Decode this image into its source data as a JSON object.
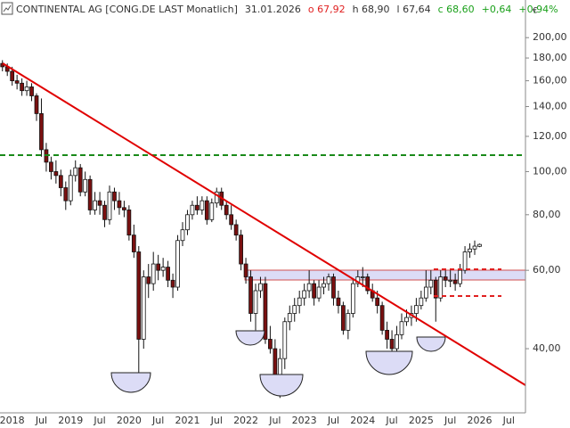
{
  "chart_data": {
    "type": "candlestick",
    "title": "CONTINENTAL AG [CONG.DE LAST Monatlich]",
    "date": "31.01.2026",
    "header_items": [
      {
        "text": "o 67,92",
        "color": "#e02020"
      },
      {
        "text": "h 68,90",
        "color": "#333333"
      },
      {
        "text": "l 67,64",
        "color": "#333333"
      },
      {
        "text": "c 68,60",
        "color": "#1aa01a"
      },
      {
        "text": "+0,64",
        "color": "#1aa01a"
      },
      {
        "text": "+0,94%",
        "color": "#1aa01a"
      }
    ],
    "currency_label": "€",
    "log_scale": true,
    "up_color": "#ffffff",
    "down_color": "#7a1010",
    "categories": [
      null,
      null,
      "2018",
      null,
      null,
      null,
      null,
      null,
      "Jul",
      null,
      null,
      null,
      null,
      null,
      "2019",
      null,
      null,
      null,
      null,
      null,
      "Jul",
      null,
      null,
      null,
      null,
      null,
      "2020",
      null,
      null,
      null,
      null,
      null,
      "Jul",
      null,
      null,
      null,
      null,
      null,
      "2021",
      null,
      null,
      null,
      null,
      null,
      "Jul",
      null,
      null,
      null,
      null,
      null,
      "2022",
      null,
      null,
      null,
      null,
      null,
      "Jul",
      null,
      null,
      null,
      null,
      null,
      "2023",
      null,
      null,
      null,
      null,
      null,
      "Jul",
      null,
      null,
      null,
      null,
      null,
      "2024",
      null,
      null,
      null,
      null,
      null,
      "Jul",
      null,
      null,
      null,
      null,
      null,
      "2025",
      null,
      null,
      null,
      null,
      null,
      "Jul",
      null,
      null,
      null,
      null,
      null,
      "2026",
      null,
      null,
      null,
      null,
      null,
      "Jul"
    ],
    "open": [
      175,
      172,
      168,
      160,
      158,
      152,
      155,
      148,
      135,
      112,
      105,
      100,
      98,
      92,
      86,
      98,
      102,
      90,
      96,
      82,
      86,
      84,
      78,
      90,
      86,
      83,
      82,
      72,
      66,
      42,
      58,
      56,
      62,
      60,
      61,
      57,
      55,
      70,
      74,
      80,
      84,
      82,
      86,
      78,
      85,
      90,
      84,
      80,
      76,
      72,
      62,
      58,
      48,
      54,
      56,
      42,
      40,
      34,
      38,
      46,
      48,
      50,
      52,
      54,
      56,
      52,
      55,
      56,
      58,
      52,
      50,
      44,
      48,
      56,
      58,
      58,
      54,
      52,
      50,
      44,
      42,
      40,
      43,
      46,
      47,
      48,
      50,
      52,
      55,
      57,
      52,
      58,
      57,
      57,
      56,
      60,
      66,
      67,
      67.92,
      null,
      null,
      null,
      null,
      null,
      null
    ],
    "high": [
      178,
      175,
      172,
      165,
      162,
      160,
      158,
      150,
      146,
      116,
      108,
      106,
      101,
      95,
      101,
      106,
      104,
      100,
      98,
      90,
      90,
      86,
      93,
      92,
      90,
      86,
      84,
      76,
      68,
      60,
      62,
      66,
      65,
      64,
      63,
      59,
      72,
      77,
      82,
      86,
      88,
      88,
      88,
      87,
      92,
      92,
      86,
      84,
      78,
      74,
      64,
      60,
      56,
      58,
      58,
      45,
      42,
      40,
      47,
      50,
      52,
      54,
      56,
      60,
      57,
      57,
      58,
      59,
      59,
      54,
      51,
      49,
      57,
      60,
      61,
      59,
      56,
      54,
      51,
      46,
      44,
      45,
      48,
      49,
      50,
      52,
      54,
      60,
      60,
      58,
      60,
      60,
      60,
      59,
      62,
      68,
      69,
      70,
      68.9,
      null,
      null,
      null,
      null,
      null,
      null
    ],
    "low": [
      168,
      164,
      156,
      153,
      148,
      148,
      144,
      130,
      108,
      100,
      96,
      94,
      88,
      82,
      84,
      95,
      88,
      88,
      80,
      80,
      80,
      75,
      76,
      82,
      80,
      79,
      70,
      64,
      34,
      40,
      52,
      54,
      57,
      58,
      55,
      52,
      54,
      68,
      72,
      78,
      80,
      80,
      76,
      77,
      83,
      82,
      78,
      74,
      70,
      60,
      56,
      46,
      44,
      52,
      41,
      39,
      33,
      31,
      36,
      44,
      46,
      48,
      50,
      52,
      50,
      51,
      53,
      54,
      50,
      48,
      43,
      42,
      47,
      55,
      55,
      53,
      51,
      48,
      43,
      40,
      38,
      38,
      42,
      45,
      45,
      46,
      49,
      51,
      53,
      46,
      51,
      55,
      55,
      54,
      55,
      59,
      64,
      65,
      67.64,
      null,
      null,
      null,
      null,
      null,
      null
    ],
    "close": [
      172,
      168,
      160,
      158,
      152,
      155,
      148,
      135,
      112,
      105,
      100,
      98,
      92,
      86,
      98,
      102,
      90,
      96,
      82,
      86,
      84,
      78,
      90,
      86,
      83,
      82,
      72,
      66,
      42,
      58,
      56,
      62,
      60,
      61,
      57,
      55,
      70,
      74,
      80,
      84,
      82,
      86,
      78,
      85,
      90,
      84,
      80,
      76,
      72,
      62,
      58,
      48,
      54,
      56,
      42,
      40,
      34,
      38,
      46,
      48,
      50,
      52,
      54,
      56,
      52,
      55,
      56,
      58,
      52,
      50,
      44,
      48,
      56,
      58,
      58,
      54,
      52,
      50,
      44,
      42,
      40,
      43,
      46,
      47,
      48,
      50,
      52,
      55,
      57,
      52,
      58,
      57,
      57,
      56,
      60,
      66,
      67,
      68,
      68.6,
      null,
      null,
      null,
      null,
      null,
      null
    ],
    "ylim": [
      28.7,
      243
    ],
    "yticks": [
      {
        "value": 40,
        "label": "40,00"
      },
      {
        "value": 60,
        "label": "60,00"
      },
      {
        "value": 80,
        "label": "80,00"
      },
      {
        "value": 100,
        "label": "100,00"
      },
      {
        "value": 120,
        "label": "120,00"
      },
      {
        "value": 140,
        "label": "140,00"
      },
      {
        "value": 160,
        "label": "160,00"
      },
      {
        "value": 180,
        "label": "180,00"
      },
      {
        "value": 200,
        "label": "200,00"
      }
    ]
  }
}
